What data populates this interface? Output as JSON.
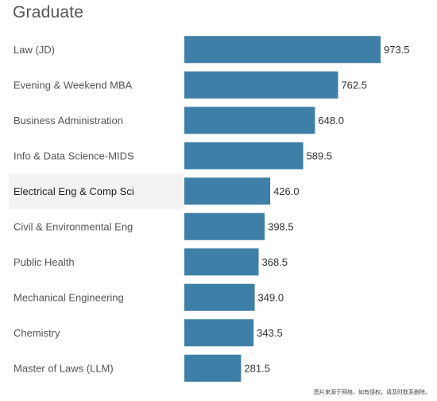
{
  "chart_data": {
    "type": "bar",
    "orientation": "horizontal",
    "title": "Graduate",
    "categories": [
      "Law (JD)",
      "Evening & Weekend MBA",
      "Business Administration",
      "Info & Data Science-MIDS",
      "Electrical Eng & Comp Sci",
      "Civil & Environmental Eng",
      "Public Health",
      "Mechanical Engineering",
      "Chemistry",
      "Master of Laws (LLM)"
    ],
    "values": [
      973.5,
      762.5,
      648.0,
      589.5,
      426.0,
      398.5,
      368.5,
      349.0,
      343.5,
      281.5
    ],
    "value_labels": [
      "973.5",
      "762.5",
      "648.0",
      "589.5",
      "426.0",
      "398.5",
      "368.5",
      "349.0",
      "343.5",
      "281.5"
    ],
    "highlighted_category": "Electrical Eng & Comp Sci",
    "xlim": [
      0,
      973.5
    ],
    "grid": false,
    "bar_color": "#3d7fa6"
  },
  "watermark": "图片来源于网络，如有侵权，请及时联系删除。"
}
